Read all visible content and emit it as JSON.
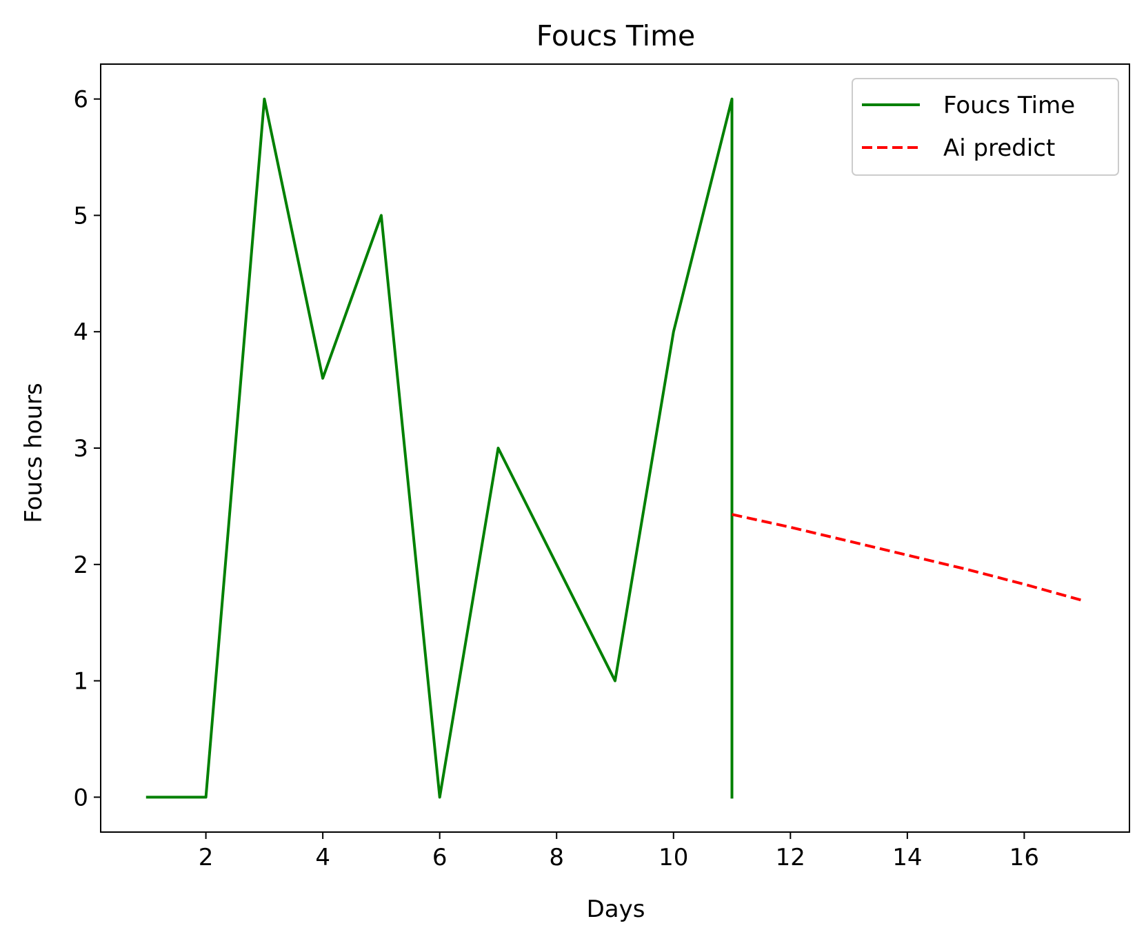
{
  "chart_data": {
    "type": "line",
    "title": "Foucs Time",
    "xlabel": "Days",
    "ylabel": "Foucs hours",
    "xlim": [
      0.2,
      17.8
    ],
    "ylim": [
      -0.3,
      6.3
    ],
    "xticks": [
      2,
      4,
      6,
      8,
      10,
      12,
      14,
      16
    ],
    "yticks": [
      0,
      1,
      2,
      3,
      4,
      5,
      6
    ],
    "grid": false,
    "legend_position": "upper right",
    "series": [
      {
        "name": "Foucs Time",
        "color": "#008000",
        "style": "solid",
        "x": [
          1,
          2,
          3,
          4,
          5,
          6,
          7,
          8,
          9,
          10,
          11,
          11
        ],
        "y": [
          0,
          0,
          6,
          3.6,
          5,
          0,
          3,
          2,
          1,
          4,
          6,
          0
        ]
      },
      {
        "name": "Ai predict",
        "color": "#ff0000",
        "style": "dashed",
        "x": [
          11,
          12,
          13,
          14,
          15,
          16,
          17
        ],
        "y": [
          2.43,
          2.32,
          2.2,
          2.08,
          1.96,
          1.83,
          1.69
        ]
      }
    ]
  }
}
